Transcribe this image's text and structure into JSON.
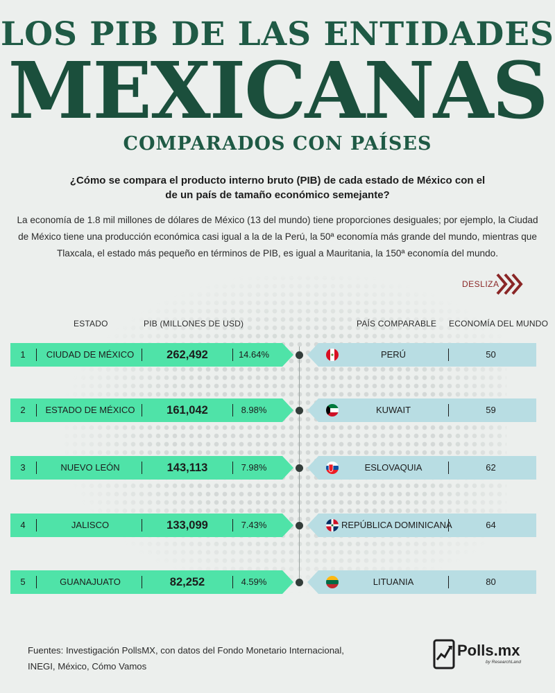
{
  "title": {
    "line1": "LOS PIB DE LAS ENTIDADES",
    "line2": "MEXICANAS",
    "line3": "COMPARADOS CON PAÍSES"
  },
  "question": "¿Cómo se compara el producto interno bruto (PIB) de cada estado de México con el de un país de tamaño económico semejante?",
  "intro": "La economía de 1.8 mil millones de dólares de México (13 del mundo) tiene proporciones desiguales; por ejemplo, la Ciudad de México tiene una producción económica casi igual a la de la Perú, la 50ª economía más grande del mundo,  mientras que Tlaxcala, el estado más pequeño en términos de PIB, es igual a Mauritania, la 150ª economía del mundo.",
  "desliza": "DESLIZA",
  "columns": {
    "state": "ESTADO",
    "pib": "PIB (MILLONES DE USD)",
    "country": "PAÍS COMPARABLE",
    "world_rank": "ECONOMÍA DEL MUNDO"
  },
  "chart_data": {
    "type": "table",
    "columns": [
      "",
      "ESTADO",
      "PIB (MILLONES DE USD)",
      "",
      "PAÍS COMPARABLE",
      "ECONOMÍA DEL MUNDO"
    ],
    "rows": [
      {
        "rank": "1",
        "state": "CIUDAD DE MÉXICO",
        "pib": "262,492",
        "pct": "14.64%",
        "country": "PERÚ",
        "world_rank": "50",
        "flag_icon": "peru-flag-icon"
      },
      {
        "rank": "2",
        "state": "ESTADO DE MÉXICO",
        "pib": "161,042",
        "pct": "8.98%",
        "country": "KUWAIT",
        "world_rank": "59",
        "flag_icon": "kuwait-flag-icon"
      },
      {
        "rank": "3",
        "state": "NUEVO LEÓN",
        "pib": "143,113",
        "pct": "7.98%",
        "country": "ESLOVAQUIA",
        "world_rank": "62",
        "flag_icon": "slovakia-flag-icon"
      },
      {
        "rank": "4",
        "state": "JALISCO",
        "pib": "133,099",
        "pct": "7.43%",
        "country": "REPÚBLICA DOMINICANA",
        "world_rank": "64",
        "flag_icon": "dominican-republic-flag-icon"
      },
      {
        "rank": "5",
        "state": "GUANAJUATO",
        "pib": "82,252",
        "pct": "4.59%",
        "country": "LITUANIA",
        "world_rank": "80",
        "flag_icon": "lithuania-flag-icon"
      }
    ]
  },
  "sources": {
    "line1": "Fuentes: Investigación PollsMX, con datos del Fondo Monetario Internacional,",
    "line2": "INEGI, México, Cómo Vamos"
  },
  "logo": {
    "name": "Polls.mx",
    "sub": "by ResearchLand"
  },
  "colors": {
    "title_green": "#1f5a45",
    "left_bar": "#4fe3a8",
    "right_bar": "#b8dde3",
    "desliza_red": "#8a2626"
  }
}
